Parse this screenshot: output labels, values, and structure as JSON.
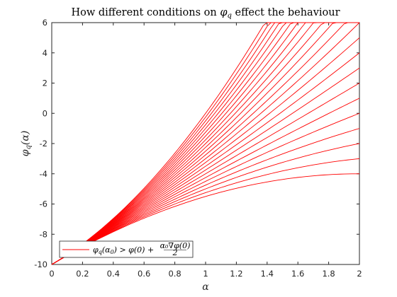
{
  "chart_data": {
    "type": "line",
    "title": "How different conditions on φ_q effect the behaviour",
    "title_parts": [
      "How different conditions on ",
      "φ",
      "q",
      " effect the behaviour"
    ],
    "xlabel": "α",
    "ylabel_parts": [
      "φ",
      "q",
      "(α)"
    ],
    "xlim": [
      0,
      2
    ],
    "ylim": [
      -10,
      6
    ],
    "x_ticks": [
      "0",
      "0.2",
      "0.4",
      "0.6",
      "0.8",
      "1",
      "1.2",
      "1.4",
      "1.6",
      "1.8",
      "2"
    ],
    "y_ticks": [
      "-10",
      "-8",
      "-6",
      "-4",
      "-2",
      "0",
      "2",
      "4",
      "6"
    ],
    "grid": false,
    "line_color": "#ff0000",
    "series_model": "phi_q(alpha) = -10 + 6*alpha + c*alpha^2",
    "curvature_coefficients": [
      -1.5,
      -1.25,
      -1.0,
      -0.75,
      -0.5,
      -0.25,
      0.0,
      0.25,
      0.5,
      0.75,
      1.0,
      1.25,
      1.5,
      1.75,
      2.0,
      2.25,
      2.5,
      2.75,
      3.0,
      3.25,
      3.5,
      3.75,
      4.0
    ],
    "endpoint_values_at_alpha_2": [
      -4.0,
      -3.0,
      -2.0,
      -1.0,
      0.0,
      1.0,
      2.0,
      3.0,
      4.0,
      5.0,
      6.0
    ],
    "legend": {
      "placement": "bottom-left",
      "label_parts": {
        "phi": "φ",
        "q": "q",
        "paren_open": "(",
        "alpha0": "α",
        "zero": "0",
        "gt_phi0_plus": ") > φ(0) + ",
        "numerator": "α₀∇φ(0)",
        "denominator": "2"
      }
    }
  }
}
